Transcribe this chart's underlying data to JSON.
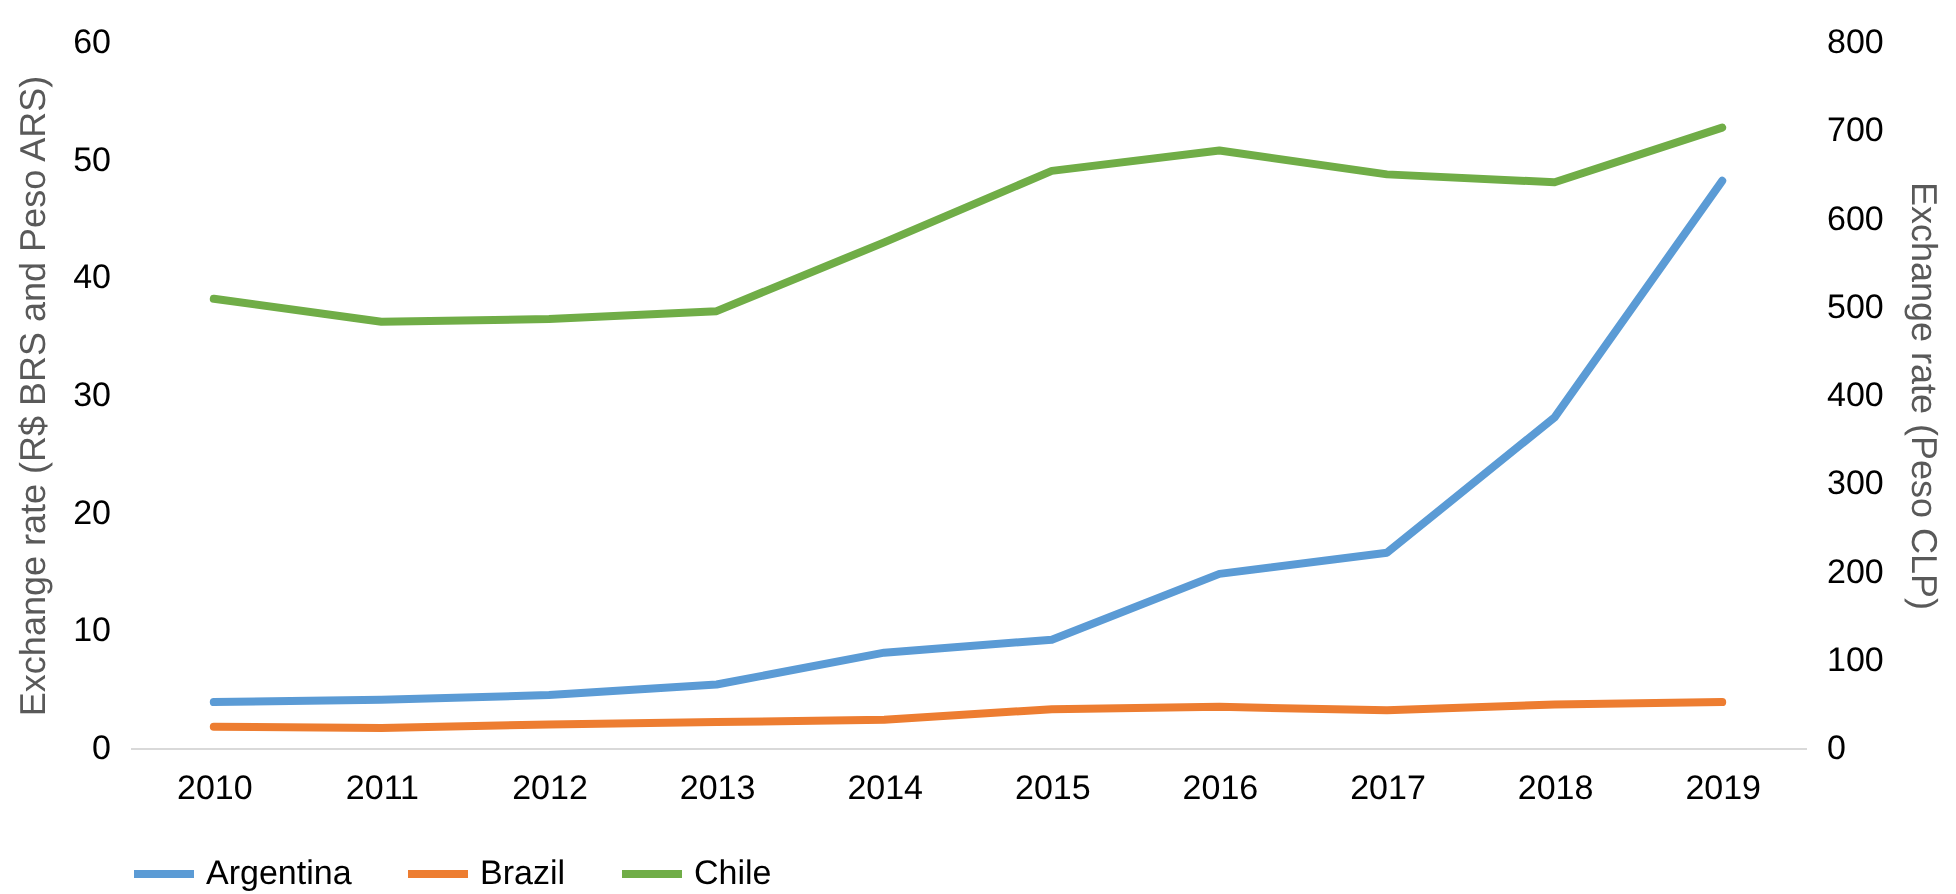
{
  "chart_data": {
    "type": "line",
    "categories": [
      "2010",
      "2011",
      "2012",
      "2013",
      "2014",
      "2015",
      "2016",
      "2017",
      "2018",
      "2019"
    ],
    "ylabel": "Exchange rate (R$ BRS and Peso ARS)",
    "y2label": "Exchange rate (Peso CLP)",
    "ylim": [
      0,
      60
    ],
    "yticks": [
      0,
      10,
      20,
      30,
      40,
      50,
      60
    ],
    "y2lim": [
      0,
      800
    ],
    "y2ticks": [
      0,
      100,
      200,
      300,
      400,
      500,
      600,
      700,
      800
    ],
    "grid": false,
    "legend": "bottom",
    "marker": "none",
    "line_style": "solid",
    "series": [
      {
        "name": "Argentina",
        "color": "#5b9bd5",
        "values": [
          3.9,
          4.1,
          4.5,
          5.4,
          8.1,
          9.2,
          14.8,
          16.6,
          28.1,
          48.2
        ]
      },
      {
        "name": "Brazil",
        "color": "#ed7d31",
        "values": [
          1.8,
          1.7,
          2.0,
          2.2,
          2.4,
          3.3,
          3.5,
          3.2,
          3.7,
          3.9
        ]
      },
      {
        "name": "Chile",
        "color": "#70ad47",
        "axis": "y2",
        "values": [
          509,
          483,
          486,
          495,
          573,
          654,
          677,
          650,
          641,
          703
        ]
      }
    ]
  }
}
